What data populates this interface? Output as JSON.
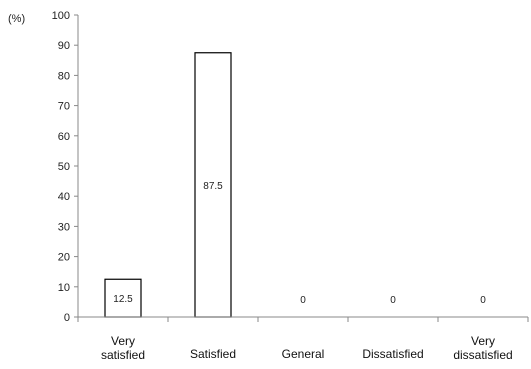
{
  "chart_data": {
    "type": "bar",
    "title": "",
    "xlabel": "",
    "ylabel": "(%)",
    "ylim": [
      0,
      100
    ],
    "yticks": [
      0,
      10,
      20,
      30,
      40,
      50,
      60,
      70,
      80,
      90,
      100
    ],
    "grid": false,
    "categories": [
      [
        "Very",
        "satisfied"
      ],
      [
        "Satisfied"
      ],
      [
        "General"
      ],
      [
        "Dissatisfied"
      ],
      [
        "Very",
        "dissatisfied"
      ]
    ],
    "values": [
      12.5,
      87.5,
      0,
      0,
      0
    ],
    "data_labels": [
      "12.5",
      "87.5",
      "0",
      "0",
      "0"
    ],
    "colors": {
      "bar_fill": "#ffffff",
      "bar_stroke": "#000000",
      "axis": "#888888"
    }
  }
}
